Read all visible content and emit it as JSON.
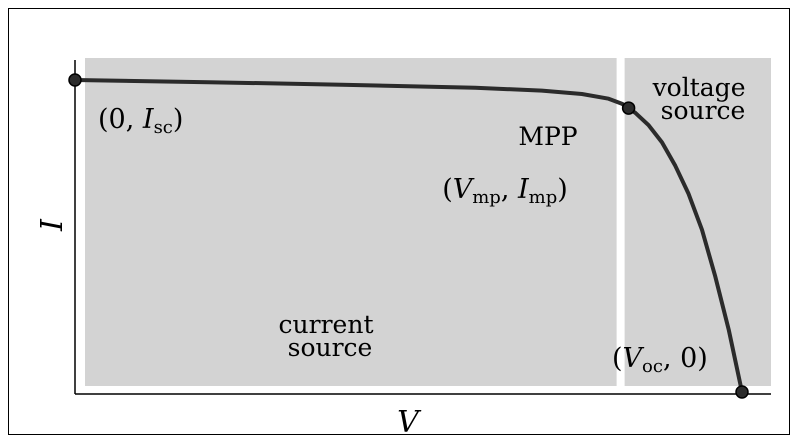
{
  "chart_data": {
    "type": "line",
    "xlabel": "V",
    "ylabel": "I",
    "xlim": [
      0,
      1
    ],
    "ylim": [
      0,
      1
    ],
    "regions": [
      {
        "name": "current source",
        "x_range": [
          0,
          0.818
        ],
        "label_lines": [
          "current",
          "source"
        ]
      },
      {
        "name": "voltage source",
        "x_range": [
          0.818,
          1.0
        ],
        "label_lines": [
          "voltage",
          "source"
        ]
      }
    ],
    "series": [
      {
        "x": [
          0.0,
          0.2,
          0.4,
          0.6,
          0.7,
          0.76,
          0.8,
          0.82,
          0.84,
          0.86,
          0.88,
          0.9,
          0.92,
          0.94,
          0.96,
          0.98,
          1.0
        ],
        "y": [
          1.0,
          0.993,
          0.985,
          0.975,
          0.966,
          0.955,
          0.94,
          0.924,
          0.895,
          0.855,
          0.8,
          0.725,
          0.635,
          0.52,
          0.37,
          0.2,
          0.0
        ]
      }
    ],
    "points": [
      {
        "id": "isc",
        "x": 0.0,
        "y": 1.0,
        "label_plain": "(0, ",
        "label_var": "I",
        "label_sub": "sc",
        "label_close": ")"
      },
      {
        "id": "mpp",
        "x": 0.83,
        "y": 0.91,
        "title": "MPP",
        "label_plain": "(",
        "label_var": "V",
        "label_sub": "mp",
        "label_mid": ", ",
        "label_var2": "I",
        "label_sub2": "mp",
        "label_close": ")"
      },
      {
        "id": "voc",
        "x": 1.0,
        "y": 0.0,
        "label_plain": "(",
        "label_var": "V",
        "label_sub": "oc",
        "label_close": ", 0)"
      }
    ],
    "colors": {
      "region": "#d3d3d3",
      "curve": "#2b2b2b",
      "divider": "#ffffff",
      "axis": "#000000"
    }
  }
}
